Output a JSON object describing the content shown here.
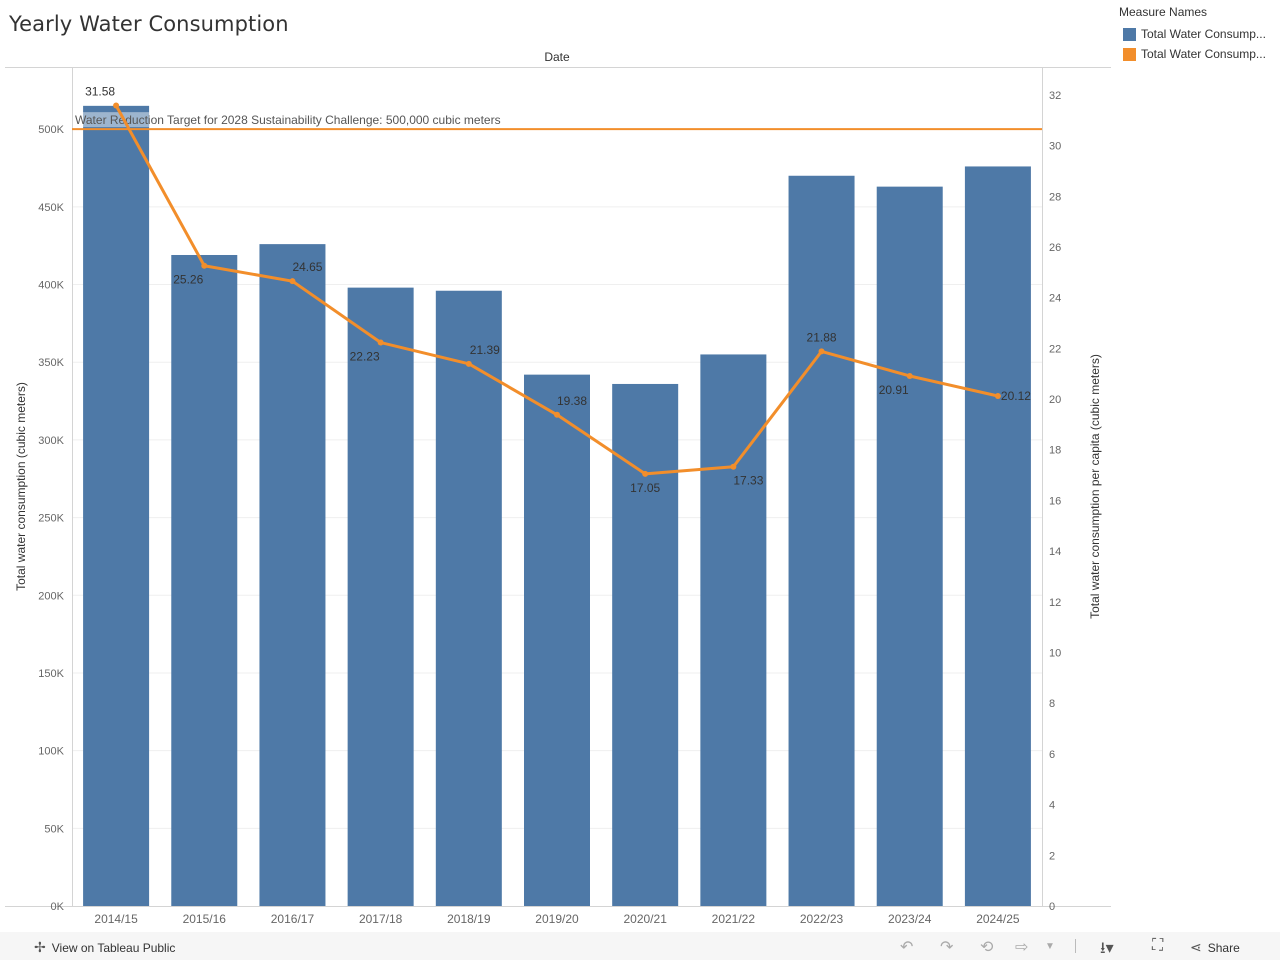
{
  "title": "Yearly Water Consumption",
  "legend": {
    "title": "Measure Names",
    "items": [
      {
        "label": "Total Water Consump...",
        "color": "#4e79a7"
      },
      {
        "label": "Total Water Consump...",
        "color": "#f28e2b"
      }
    ]
  },
  "footer": {
    "view_label": "View on Tableau Public",
    "share_label": "Share"
  },
  "chart_data": {
    "type": "bar",
    "x_header": "Date",
    "categories": [
      "2014/15",
      "2015/16",
      "2016/17",
      "2017/18",
      "2018/19",
      "2019/20",
      "2020/21",
      "2021/22",
      "2022/23",
      "2023/24",
      "2024/25"
    ],
    "series": [
      {
        "type": "bar",
        "axis": "left",
        "color": "#4e79a7",
        "values": [
          515000,
          419000,
          426000,
          398000,
          396000,
          342000,
          336000,
          355000,
          470000,
          463000,
          476000
        ]
      },
      {
        "type": "line",
        "axis": "right",
        "color": "#f28e2b",
        "values": [
          31.58,
          25.26,
          24.65,
          22.23,
          21.39,
          19.38,
          17.05,
          17.33,
          21.88,
          20.91,
          20.12
        ],
        "labels": [
          "31.58",
          "25.26",
          "24.65",
          "22.23",
          "21.39",
          "19.38",
          "17.05",
          "17.33",
          "21.88",
          "20.91",
          "20.12"
        ]
      }
    ],
    "ylabel_left": "Total water consumption (cubic meters)",
    "ylabel_right": "Total water consumption per capita (cubic meters)",
    "ylim_left": [
      0,
      540000
    ],
    "yticks_left": [
      {
        "value": 0,
        "label": "0K"
      },
      {
        "value": 50000,
        "label": "50K"
      },
      {
        "value": 100000,
        "label": "100K"
      },
      {
        "value": 150000,
        "label": "150K"
      },
      {
        "value": 200000,
        "label": "200K"
      },
      {
        "value": 250000,
        "label": "250K"
      },
      {
        "value": 300000,
        "label": "300K"
      },
      {
        "value": 350000,
        "label": "350K"
      },
      {
        "value": 400000,
        "label": "400K"
      },
      {
        "value": 450000,
        "label": "450K"
      },
      {
        "value": 500000,
        "label": "500K"
      }
    ],
    "ylim_right": [
      0,
      33.1
    ],
    "yticks_right": [
      {
        "value": 0,
        "label": "0"
      },
      {
        "value": 2,
        "label": "2"
      },
      {
        "value": 4,
        "label": "4"
      },
      {
        "value": 6,
        "label": "6"
      },
      {
        "value": 8,
        "label": "8"
      },
      {
        "value": 10,
        "label": "10"
      },
      {
        "value": 12,
        "label": "12"
      },
      {
        "value": 14,
        "label": "14"
      },
      {
        "value": 16,
        "label": "16"
      },
      {
        "value": 18,
        "label": "18"
      },
      {
        "value": 20,
        "label": "20"
      },
      {
        "value": 22,
        "label": "22"
      },
      {
        "value": 24,
        "label": "24"
      },
      {
        "value": 26,
        "label": "26"
      },
      {
        "value": 28,
        "label": "28"
      },
      {
        "value": 30,
        "label": "30"
      },
      {
        "value": 32,
        "label": "32"
      }
    ],
    "reference_line": {
      "axis": "left",
      "value": 500000,
      "color": "#f28e2b",
      "label": "Water Reduction Target for 2028 Sustainability Challenge: 500,000 cubic meters"
    },
    "grid": true
  }
}
